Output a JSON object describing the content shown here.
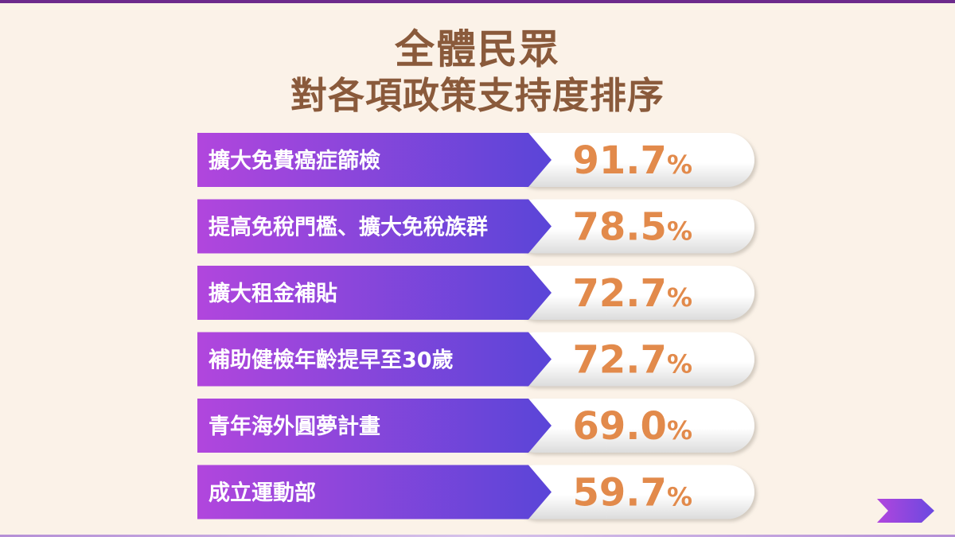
{
  "title": {
    "line1": "全體民眾",
    "line2": "對各項政策支持度排序"
  },
  "colors": {
    "background": "#fbf2e8",
    "title": "#8a5a3b",
    "label_gradient_start": "#b146dd",
    "label_gradient_end": "#5a45d8",
    "value": "#e28a4b",
    "accent_line": "#6d2a8c"
  },
  "chart_data": {
    "type": "table",
    "categories": [
      "擴大免費癌症篩檢",
      "提高免稅門檻、擴大免稅族群",
      "擴大租金補貼",
      "補助健檢年齡提早至30歲",
      "青年海外圓夢計畫",
      "成立運動部"
    ],
    "values": [
      91.7,
      78.5,
      72.7,
      72.7,
      69.0,
      59.7
    ],
    "value_labels": [
      "91.7",
      "78.5",
      "72.7",
      "72.7",
      "69.0",
      "59.7"
    ],
    "unit": "%",
    "title": "全體民眾 對各項政策支持度排序"
  },
  "icons": {
    "next": "next-arrow-icon"
  }
}
